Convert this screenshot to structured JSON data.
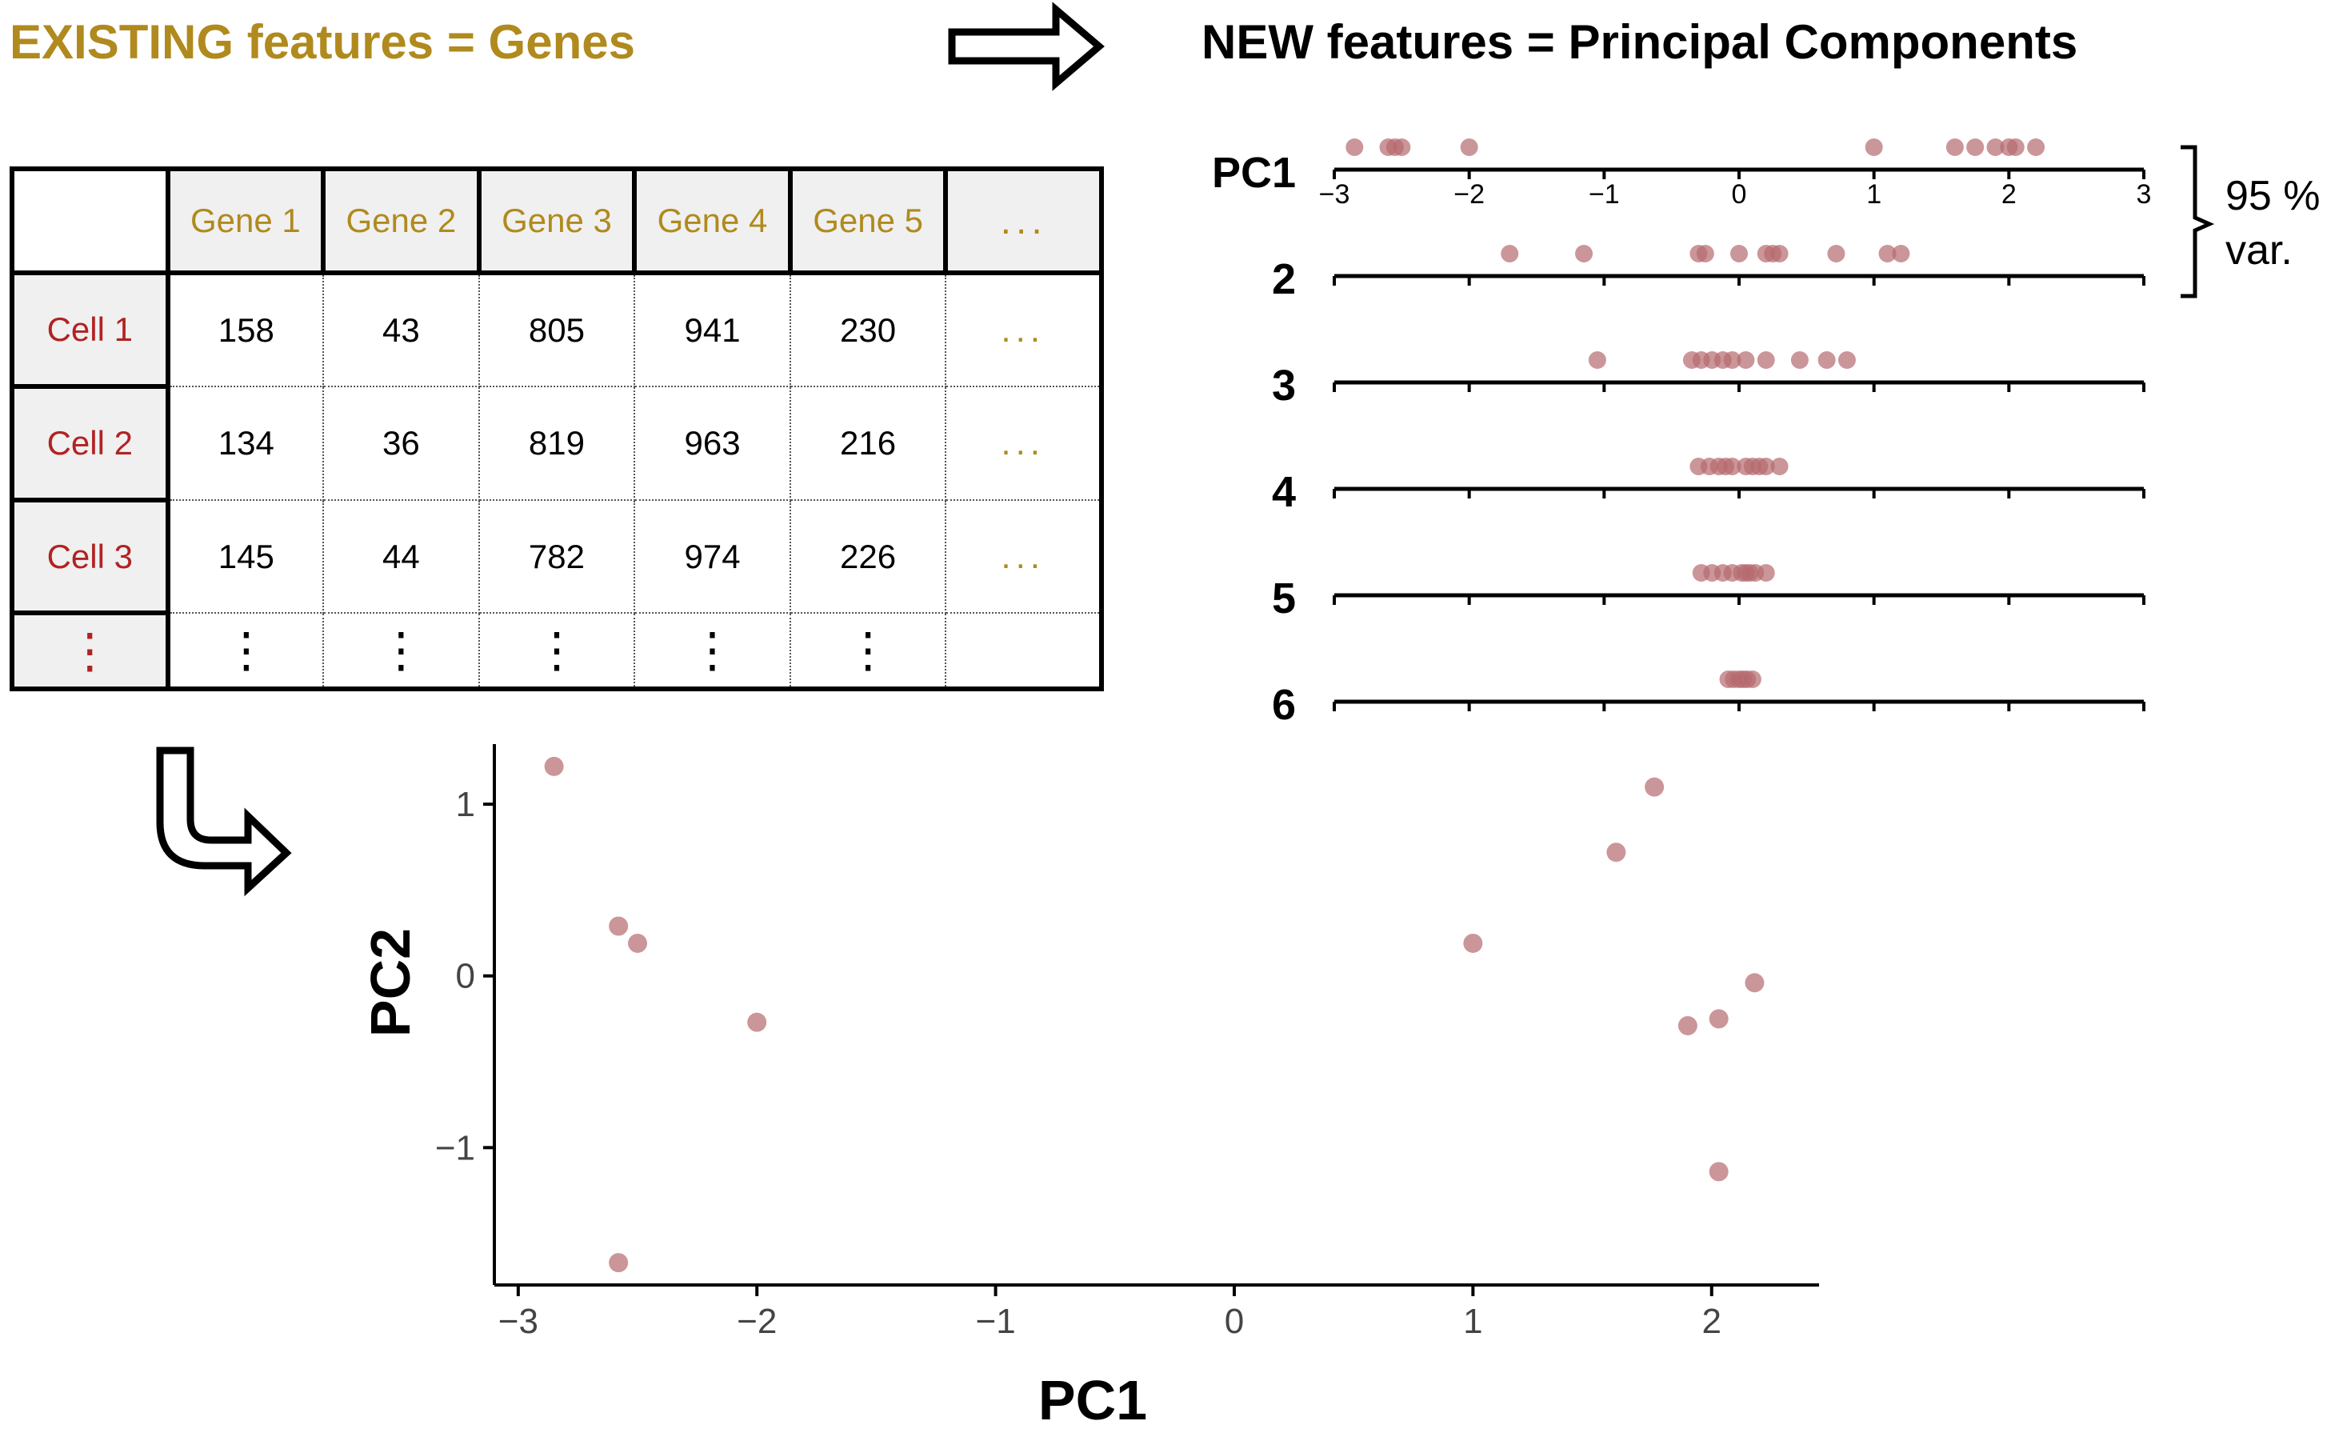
{
  "title_left": "EXISTING features = Genes",
  "title_right": "NEW features = Principal Components",
  "colors": {
    "gold": "#B08A1E",
    "red": "#B22222",
    "point": "#B5696E",
    "point_dark": "#8B1A1A"
  },
  "table": {
    "corner": "",
    "columns": [
      "Gene 1",
      "Gene 2",
      "Gene 3",
      "Gene 4",
      "Gene 5",
      "..."
    ],
    "rows": [
      {
        "label": "Cell 1",
        "values": [
          "158",
          "43",
          "805",
          "941",
          "230"
        ],
        "more": "..."
      },
      {
        "label": "Cell 2",
        "values": [
          "134",
          "36",
          "819",
          "963",
          "216"
        ],
        "more": "..."
      },
      {
        "label": "Cell 3",
        "values": [
          "145",
          "44",
          "782",
          "974",
          "226"
        ],
        "more": "..."
      }
    ],
    "last_row": {
      "label": "⋮",
      "values": [
        "⋮",
        "⋮",
        "⋮",
        "⋮",
        "⋮"
      ],
      "more": ""
    }
  },
  "variance_label_line1": "95 %",
  "variance_label_line2": "var.",
  "chart_data": [
    {
      "type": "scatter",
      "title": "",
      "xlim": [
        -3,
        3
      ],
      "xticks": [
        "−3",
        "−2",
        "−1",
        "0",
        "1",
        "2",
        "3"
      ],
      "axes": [
        {
          "label": "PC1",
          "values": [
            -2.85,
            -2.6,
            -2.55,
            -2.5,
            -2.0,
            1.0,
            1.6,
            1.75,
            1.9,
            2.0,
            2.05,
            2.2
          ]
        },
        {
          "label": "2",
          "values": [
            -1.7,
            -1.15,
            -0.3,
            -0.25,
            0.0,
            0.2,
            0.25,
            0.3,
            0.72,
            1.1,
            1.2
          ]
        },
        {
          "label": "3",
          "values": [
            -1.05,
            -0.35,
            -0.28,
            -0.2,
            -0.12,
            -0.05,
            0.05,
            0.2,
            0.45,
            0.65,
            0.8
          ]
        },
        {
          "label": "4",
          "values": [
            -0.3,
            -0.22,
            -0.15,
            -0.1,
            -0.05,
            0.05,
            0.1,
            0.15,
            0.2,
            0.3
          ]
        },
        {
          "label": "5",
          "values": [
            -0.28,
            -0.2,
            -0.12,
            -0.05,
            0.02,
            0.05,
            0.08,
            0.12,
            0.2
          ]
        },
        {
          "label": "6",
          "values": [
            -0.08,
            -0.04,
            0.0,
            0.03,
            0.06,
            0.1
          ]
        }
      ]
    },
    {
      "type": "scatter",
      "title": "",
      "xlabel": "PC1",
      "ylabel": "PC2",
      "xlim": [
        -3.1,
        2.45
      ],
      "ylim": [
        -1.8,
        1.35
      ],
      "xticks": [
        {
          "v": -3,
          "t": "−3"
        },
        {
          "v": -2,
          "t": "−2"
        },
        {
          "v": -1,
          "t": "−1"
        },
        {
          "v": 0,
          "t": "0"
        },
        {
          "v": 1,
          "t": "1"
        },
        {
          "v": 2,
          "t": "2"
        }
      ],
      "yticks": [
        {
          "v": 1,
          "t": "1"
        },
        {
          "v": 0,
          "t": "0"
        },
        {
          "v": -1,
          "t": "−1"
        }
      ],
      "points": [
        {
          "x": -2.85,
          "y": 1.22
        },
        {
          "x": -2.58,
          "y": 0.29
        },
        {
          "x": -2.5,
          "y": 0.19
        },
        {
          "x": -2.0,
          "y": -0.27
        },
        {
          "x": -2.58,
          "y": -1.67
        },
        {
          "x": 1.0,
          "y": 0.19
        },
        {
          "x": 1.6,
          "y": 0.72
        },
        {
          "x": 1.76,
          "y": 1.1
        },
        {
          "x": 2.18,
          "y": -0.04
        },
        {
          "x": 1.9,
          "y": -0.29
        },
        {
          "x": 2.03,
          "y": -0.25
        },
        {
          "x": 2.03,
          "y": -1.14
        }
      ]
    }
  ]
}
